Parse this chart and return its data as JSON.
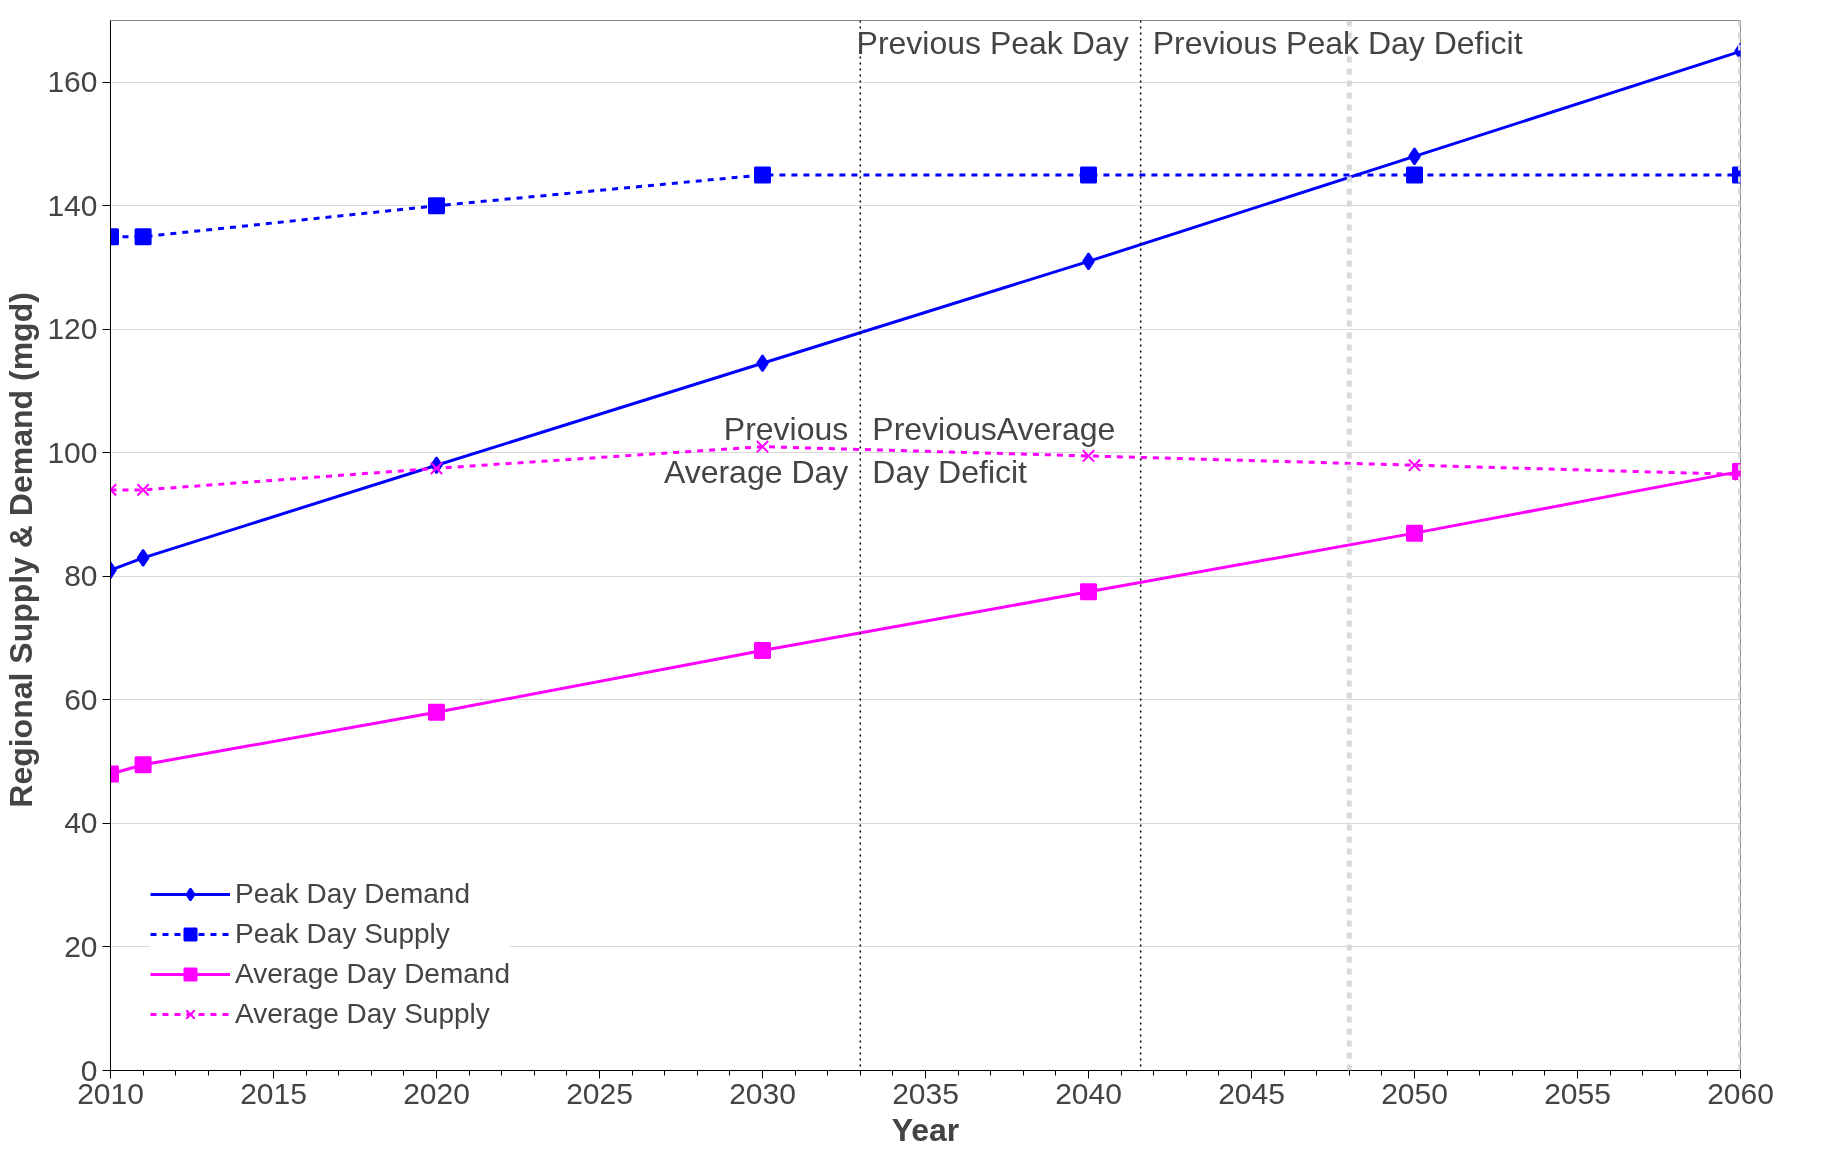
{
  "chart_data": {
    "type": "line",
    "xlabel": "Year",
    "ylabel": "Regional Supply & Demand  (mgd)",
    "x": [
      2010,
      2011,
      2020,
      2030,
      2040,
      2050,
      2060
    ],
    "series": [
      {
        "name": "Peak Day Demand",
        "color": "#0000ff",
        "marker": "diamond",
        "line_style": "solid",
        "values": [
          81,
          83,
          98,
          114.5,
          131,
          148,
          165
        ]
      },
      {
        "name": "Peak Day Supply",
        "color": "#0000ff",
        "marker": "square",
        "line_style": "dashed",
        "values": [
          135,
          135,
          140,
          145,
          145,
          145,
          145
        ]
      },
      {
        "name": "Average Day Demand",
        "color": "#ff00ff",
        "marker": "square",
        "line_style": "solid",
        "values": [
          48,
          49.5,
          58,
          68,
          77.5,
          87,
          97
        ]
      },
      {
        "name": "Average Day Supply",
        "color": "#ff00ff",
        "marker": "cross",
        "line_style": "dashed",
        "values": [
          94,
          94,
          97.5,
          101,
          99.5,
          98,
          96.5
        ]
      }
    ],
    "xlim": [
      2010,
      2060
    ],
    "xticks": [
      2010,
      2015,
      2020,
      2025,
      2030,
      2035,
      2040,
      2045,
      2050,
      2055,
      2060
    ],
    "ylim": [
      0,
      170
    ],
    "yticks": [
      0,
      20,
      40,
      60,
      80,
      100,
      120,
      140,
      160
    ],
    "grid": "y",
    "legend": "bottom left",
    "ref_lines": [
      {
        "axis": "x",
        "value": 2041.6,
        "color": "#000000",
        "line_style": "dotted"
      },
      {
        "axis": "x",
        "value": 2033,
        "color": "#000000",
        "line_style": "dotted"
      },
      {
        "axis": "x",
        "value": 2048,
        "color": "#d9d9d9",
        "line_style": "dashed"
      },
      {
        "axis": "x",
        "value": 2060,
        "color": "#d9d9d9",
        "line_style": "dashed"
      }
    ],
    "annotations": [
      "Previous Peak Day",
      "Previous Peak Day Deficit",
      "Previous\nAverage Day",
      "PreviousAverage\nDay Deficit"
    ]
  }
}
